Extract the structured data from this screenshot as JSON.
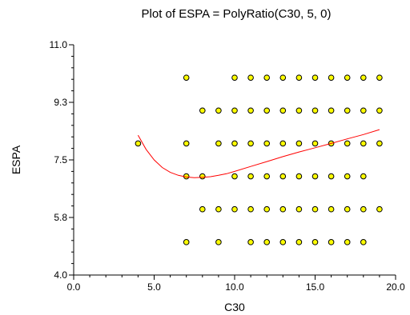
{
  "chart_data": {
    "type": "scatter",
    "title": "Plot of ESPA = PolyRatio(C30, 5, 0)",
    "xlabel": "C30",
    "ylabel": "ESPA",
    "xlim": [
      0.0,
      20.0
    ],
    "ylim": [
      4.0,
      11.0
    ],
    "xticks": [
      "0.0",
      "5.0",
      "10.0",
      "15.0",
      "20.0"
    ],
    "yticks": [
      "4.0",
      "5.8",
      "7.5",
      "9.3",
      "11.0"
    ],
    "grid": false,
    "colors": {
      "points": "#ffff00",
      "fit_line": "#ff0000"
    },
    "points": [
      [
        4,
        8
      ],
      [
        7,
        10
      ],
      [
        7,
        8
      ],
      [
        7,
        7
      ],
      [
        7,
        5
      ],
      [
        8,
        9
      ],
      [
        8,
        7
      ],
      [
        8,
        6
      ],
      [
        9,
        9
      ],
      [
        9,
        8
      ],
      [
        9,
        6
      ],
      [
        9,
        5
      ],
      [
        10,
        10
      ],
      [
        10,
        9
      ],
      [
        10,
        8
      ],
      [
        10,
        7
      ],
      [
        10,
        6
      ],
      [
        11,
        10
      ],
      [
        11,
        9
      ],
      [
        11,
        8
      ],
      [
        11,
        7
      ],
      [
        11,
        6
      ],
      [
        11,
        5
      ],
      [
        12,
        10
      ],
      [
        12,
        9
      ],
      [
        12,
        8
      ],
      [
        12,
        7
      ],
      [
        12,
        6
      ],
      [
        12,
        5
      ],
      [
        13,
        10
      ],
      [
        13,
        9
      ],
      [
        13,
        8
      ],
      [
        13,
        7
      ],
      [
        13,
        6
      ],
      [
        13,
        5
      ],
      [
        14,
        10
      ],
      [
        14,
        9
      ],
      [
        14,
        8
      ],
      [
        14,
        7
      ],
      [
        14,
        6
      ],
      [
        14,
        5
      ],
      [
        15,
        10
      ],
      [
        15,
        9
      ],
      [
        15,
        8
      ],
      [
        15,
        7
      ],
      [
        15,
        6
      ],
      [
        15,
        5
      ],
      [
        16,
        10
      ],
      [
        16,
        9
      ],
      [
        16,
        8
      ],
      [
        16,
        7
      ],
      [
        16,
        6
      ],
      [
        16,
        5
      ],
      [
        17,
        10
      ],
      [
        17,
        9
      ],
      [
        17,
        8
      ],
      [
        17,
        7
      ],
      [
        17,
        6
      ],
      [
        17,
        5
      ],
      [
        18,
        10
      ],
      [
        18,
        9
      ],
      [
        18,
        8
      ],
      [
        18,
        7
      ],
      [
        18,
        6
      ],
      [
        18,
        5
      ],
      [
        19,
        10
      ],
      [
        19,
        9
      ],
      [
        19,
        8
      ],
      [
        19,
        6
      ]
    ],
    "fit_line": [
      [
        4.0,
        8.25
      ],
      [
        4.5,
        7.82
      ],
      [
        5.0,
        7.5
      ],
      [
        5.5,
        7.27
      ],
      [
        6.0,
        7.12
      ],
      [
        6.5,
        7.03
      ],
      [
        7.0,
        6.98
      ],
      [
        7.5,
        6.96
      ],
      [
        8.0,
        6.97
      ],
      [
        8.5,
        6.99
      ],
      [
        9.0,
        7.03
      ],
      [
        9.5,
        7.08
      ],
      [
        10.0,
        7.15
      ],
      [
        11.0,
        7.3
      ],
      [
        12.0,
        7.45
      ],
      [
        13.0,
        7.6
      ],
      [
        14.0,
        7.74
      ],
      [
        15.0,
        7.87
      ],
      [
        16.0,
        8.0
      ],
      [
        17.0,
        8.14
      ],
      [
        18.0,
        8.27
      ],
      [
        19.0,
        8.42
      ]
    ]
  }
}
